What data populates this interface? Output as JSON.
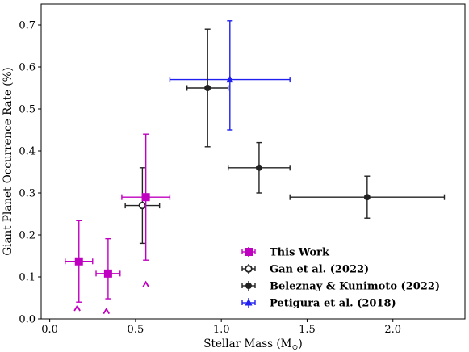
{
  "chart_data": {
    "type": "scatter",
    "title": "",
    "xlabel": "Stellar Mass (M",
    "xlabel_sub": "⊙",
    "xlabel_close": ")",
    "ylabel": "Giant Planet Occurrence Rate (%)",
    "xlim": [
      -0.05,
      2.42
    ],
    "ylim": [
      0.0,
      0.75
    ],
    "xticks": [
      0.0,
      0.5,
      1.0,
      1.5,
      2.0
    ],
    "yticks": [
      0.0,
      0.1,
      0.2,
      0.3,
      0.4,
      0.5,
      0.6,
      0.7
    ],
    "xtick_labels": [
      "0.0",
      "0.5",
      "1.0",
      "1.5",
      "2.0"
    ],
    "ytick_labels": [
      "0.0",
      "0.1",
      "0.2",
      "0.3",
      "0.4",
      "0.5",
      "0.6",
      "0.7"
    ],
    "grid": false,
    "legend_position": "lower-right",
    "series": [
      {
        "name": "This Work",
        "color": "#c000c0",
        "marker": "square",
        "points": [
          {
            "x": 0.17,
            "y": 0.137,
            "xerr": [
              0.08,
              0.08
            ],
            "yerr": [
              0.097,
              0.097
            ]
          },
          {
            "x": 0.34,
            "y": 0.108,
            "xerr": [
              0.07,
              0.07
            ],
            "yerr": [
              0.06,
              0.083
            ]
          },
          {
            "x": 0.56,
            "y": 0.29,
            "xerr": [
              0.14,
              0.14
            ],
            "yerr": [
              0.15,
              0.15
            ]
          }
        ],
        "limits": [
          {
            "x": 0.16,
            "y": 0.025
          },
          {
            "x": 0.33,
            "y": 0.018
          },
          {
            "x": 0.56,
            "y": 0.082
          }
        ]
      },
      {
        "name": "Gan et al. (2022)",
        "color": "#222222",
        "marker": "open-circle",
        "points": [
          {
            "x": 0.54,
            "y": 0.27,
            "xerr": [
              0.1,
              0.1
            ],
            "yerr": [
              0.09,
              0.09
            ]
          }
        ]
      },
      {
        "name": "Beleznay & Kunimoto (2022)",
        "color": "#222222",
        "marker": "circle",
        "points": [
          {
            "x": 0.92,
            "y": 0.55,
            "xerr": [
              0.12,
              0.12
            ],
            "yerr": [
              0.14,
              0.14
            ]
          },
          {
            "x": 1.22,
            "y": 0.36,
            "xerr": [
              0.18,
              0.18
            ],
            "yerr": [
              0.06,
              0.06
            ]
          },
          {
            "x": 1.85,
            "y": 0.29,
            "xerr": [
              0.45,
              0.45
            ],
            "yerr": [
              0.05,
              0.05
            ]
          }
        ]
      },
      {
        "name": "Petigura et al. (2018)",
        "color": "#1f1fef",
        "marker": "triangle",
        "points": [
          {
            "x": 1.05,
            "y": 0.57,
            "xerr": [
              0.35,
              0.35
            ],
            "yerr": [
              0.12,
              0.14
            ]
          }
        ]
      }
    ]
  }
}
